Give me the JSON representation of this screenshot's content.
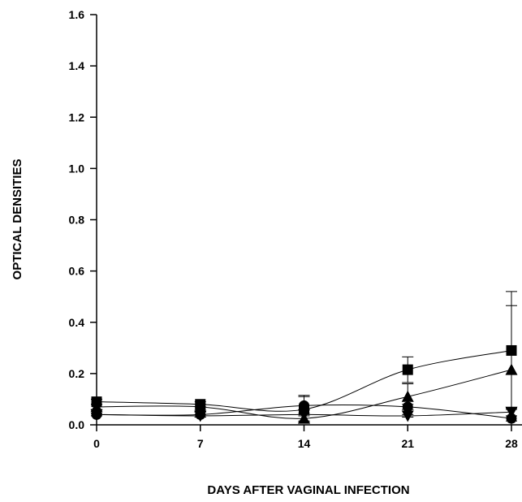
{
  "chart_data": {
    "type": "line",
    "xlabel": "DAYS AFTER VAGINAL INFECTION",
    "ylabel": "OPTICAL DENSITIES",
    "x_ticks": [
      "0",
      "7",
      "14",
      "21",
      "28"
    ],
    "y_ticks": [
      "0.0",
      "0.2",
      "0.4",
      "0.6",
      "0.8",
      "1.0",
      "1.2",
      "1.4",
      "1.6"
    ],
    "xlim": [
      0,
      28
    ],
    "ylim": [
      0,
      1.6
    ],
    "x": [
      0,
      7,
      14,
      21,
      28
    ],
    "series": [
      {
        "marker": "square",
        "values": [
          0.09,
          0.08,
          0.06,
          0.215,
          0.29
        ],
        "error": [
          0.01,
          0.01,
          0.05,
          0.05,
          0.23
        ]
      },
      {
        "marker": "triangle-up",
        "values": [
          0.07,
          0.07,
          0.025,
          0.11,
          0.215
        ],
        "error": [
          0.01,
          0.01,
          0.01,
          0.05,
          0.25
        ]
      },
      {
        "marker": "circle",
        "values": [
          0.04,
          0.04,
          0.075,
          0.07,
          0.025
        ],
        "error": [
          0.005,
          0.01,
          0.04,
          0.01,
          0.01
        ]
      },
      {
        "marker": "triangle-down",
        "values": [
          0.04,
          0.035,
          0.04,
          0.035,
          0.05
        ],
        "error": [
          0.005,
          0.005,
          0.005,
          0.005,
          0.015
        ]
      }
    ],
    "marker_color": "#000000",
    "grid": false
  }
}
